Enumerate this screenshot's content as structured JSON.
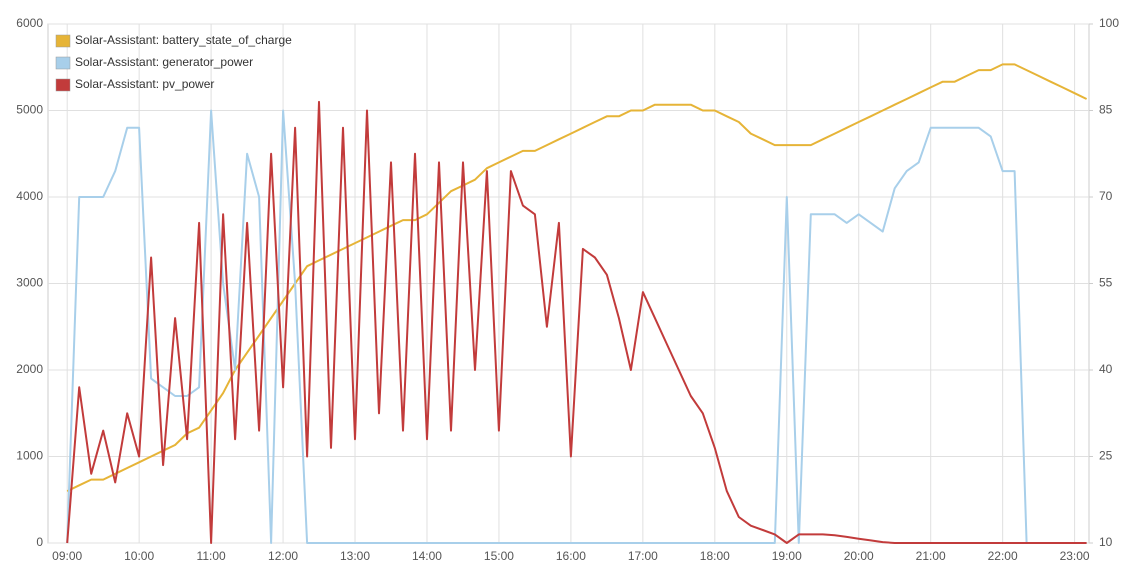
{
  "chart_data": {
    "type": "line",
    "x": [
      "09:00",
      "09:10",
      "09:20",
      "09:30",
      "09:40",
      "09:50",
      "10:00",
      "10:10",
      "10:20",
      "10:30",
      "10:40",
      "10:50",
      "11:00",
      "11:10",
      "11:20",
      "11:30",
      "11:40",
      "11:50",
      "12:00",
      "12:10",
      "12:20",
      "12:30",
      "12:40",
      "12:50",
      "13:00",
      "13:10",
      "13:20",
      "13:30",
      "13:40",
      "13:50",
      "14:00",
      "14:10",
      "14:20",
      "14:30",
      "14:40",
      "14:50",
      "15:00",
      "15:10",
      "15:20",
      "15:30",
      "15:40",
      "15:50",
      "16:00",
      "16:10",
      "16:20",
      "16:30",
      "16:40",
      "16:50",
      "17:00",
      "17:10",
      "17:20",
      "17:30",
      "17:40",
      "17:50",
      "18:00",
      "18:10",
      "18:20",
      "18:30",
      "18:40",
      "18:50",
      "19:00",
      "19:10",
      "19:20",
      "19:30",
      "19:40",
      "19:50",
      "20:00",
      "20:10",
      "20:20",
      "20:30",
      "20:40",
      "20:50",
      "21:00",
      "21:10",
      "21:20",
      "21:30",
      "21:40",
      "21:50",
      "22:00",
      "22:10",
      "22:20",
      "22:30",
      "22:40",
      "22:50",
      "23:00",
      "23:10"
    ],
    "series": [
      {
        "name": "Solar-Assistant: battery_state_of_charge",
        "color": "#e6b437",
        "axis": "y2",
        "values": [
          19,
          20,
          21,
          21,
          22,
          23,
          24,
          25,
          26,
          27,
          29,
          30,
          33,
          36,
          40,
          43,
          46,
          49,
          52,
          55,
          58,
          59,
          60,
          61,
          62,
          63,
          64,
          65,
          66,
          66,
          67,
          69,
          71,
          72,
          73,
          75,
          76,
          77,
          78,
          78,
          79,
          80,
          81,
          82,
          83,
          84,
          84,
          85,
          85,
          86,
          86,
          86,
          86,
          85,
          85,
          84,
          83,
          81,
          80,
          79,
          79,
          79,
          79,
          80,
          81,
          82,
          83,
          84,
          85,
          86,
          87,
          88,
          89,
          90,
          90,
          91,
          92,
          92,
          93,
          93,
          92,
          91,
          90,
          89,
          88,
          87
        ]
      },
      {
        "name": "Solar-Assistant: generator_power",
        "color": "#a8cfea",
        "values": [
          0,
          4000,
          4000,
          4000,
          4300,
          4800,
          4800,
          1900,
          1800,
          1700,
          1700,
          1800,
          5000,
          3000,
          2000,
          4500,
          4000,
          0,
          5000,
          3000,
          0,
          0,
          0,
          0,
          0,
          0,
          0,
          0,
          0,
          0,
          0,
          0,
          0,
          0,
          0,
          0,
          0,
          0,
          0,
          0,
          0,
          0,
          0,
          0,
          0,
          0,
          0,
          0,
          0,
          0,
          0,
          0,
          0,
          0,
          0,
          0,
          0,
          0,
          0,
          0,
          4000,
          0,
          3800,
          3800,
          3800,
          3700,
          3800,
          3700,
          3600,
          4100,
          4300,
          4400,
          4800,
          4800,
          4800,
          4800,
          4800,
          4700,
          4300,
          4300,
          0,
          0,
          0,
          0,
          0,
          0
        ]
      },
      {
        "name": "Solar-Assistant: pv_power",
        "color": "#c23b3b",
        "values": [
          0,
          1800,
          800,
          1300,
          700,
          1500,
          1000,
          3300,
          900,
          2600,
          1200,
          3700,
          0,
          3800,
          1200,
          3700,
          1300,
          4500,
          1800,
          4800,
          1000,
          5100,
          1100,
          4800,
          1200,
          5000,
          1500,
          4400,
          1300,
          4500,
          1200,
          4400,
          1300,
          4400,
          2000,
          4300,
          1300,
          4300,
          3900,
          3800,
          2500,
          3700,
          1000,
          3400,
          3300,
          3100,
          2600,
          2000,
          2900,
          2600,
          2300,
          2000,
          1700,
          1500,
          1100,
          600,
          300,
          200,
          150,
          100,
          0,
          100,
          100,
          100,
          90,
          70,
          50,
          30,
          10,
          0,
          0,
          0,
          0,
          0,
          0,
          0,
          0,
          0,
          0,
          0,
          0,
          0,
          0,
          0,
          0,
          0
        ]
      }
    ],
    "xlim": [
      "08:44",
      "23:12"
    ],
    "xticks": [
      "09:00",
      "10:00",
      "11:00",
      "12:00",
      "13:00",
      "14:00",
      "15:00",
      "16:00",
      "17:00",
      "18:00",
      "19:00",
      "20:00",
      "21:00",
      "22:00",
      "23:00"
    ],
    "ylim": [
      0,
      6000
    ],
    "yticks": [
      0,
      1000,
      2000,
      3000,
      4000,
      5000,
      6000
    ],
    "y2lim": [
      10,
      100
    ],
    "y2ticks": [
      10,
      25,
      40,
      55,
      70,
      85,
      100
    ],
    "grid": true,
    "legend": "top-left"
  }
}
